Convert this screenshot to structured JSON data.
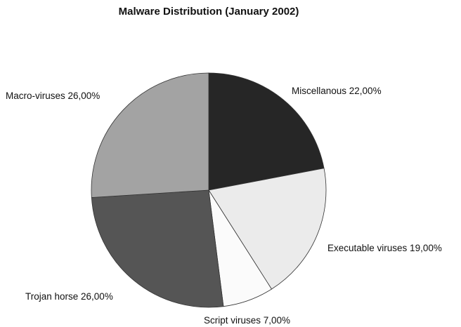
{
  "chart_data": {
    "type": "pie",
    "title": "Malware Distribution (January 2002)",
    "slices": [
      {
        "label": "Miscellanous",
        "value": 22,
        "value_label": "22,00%",
        "color": "#262626"
      },
      {
        "label": "Executable viruses",
        "value": 19,
        "value_label": "19,00%",
        "color": "#ebebeb"
      },
      {
        "label": "Script viruses",
        "value": 7,
        "value_label": "7,00%",
        "color": "#fbfbfb"
      },
      {
        "label": "Trojan horse",
        "value": 26,
        "value_label": "26,00%",
        "color": "#555555"
      },
      {
        "label": "Macro-viruses",
        "value": 26,
        "value_label": "26,00%",
        "color": "#a3a3a3"
      }
    ],
    "start_angle": "12 o'clock",
    "direction": "clockwise",
    "legend": "none"
  }
}
